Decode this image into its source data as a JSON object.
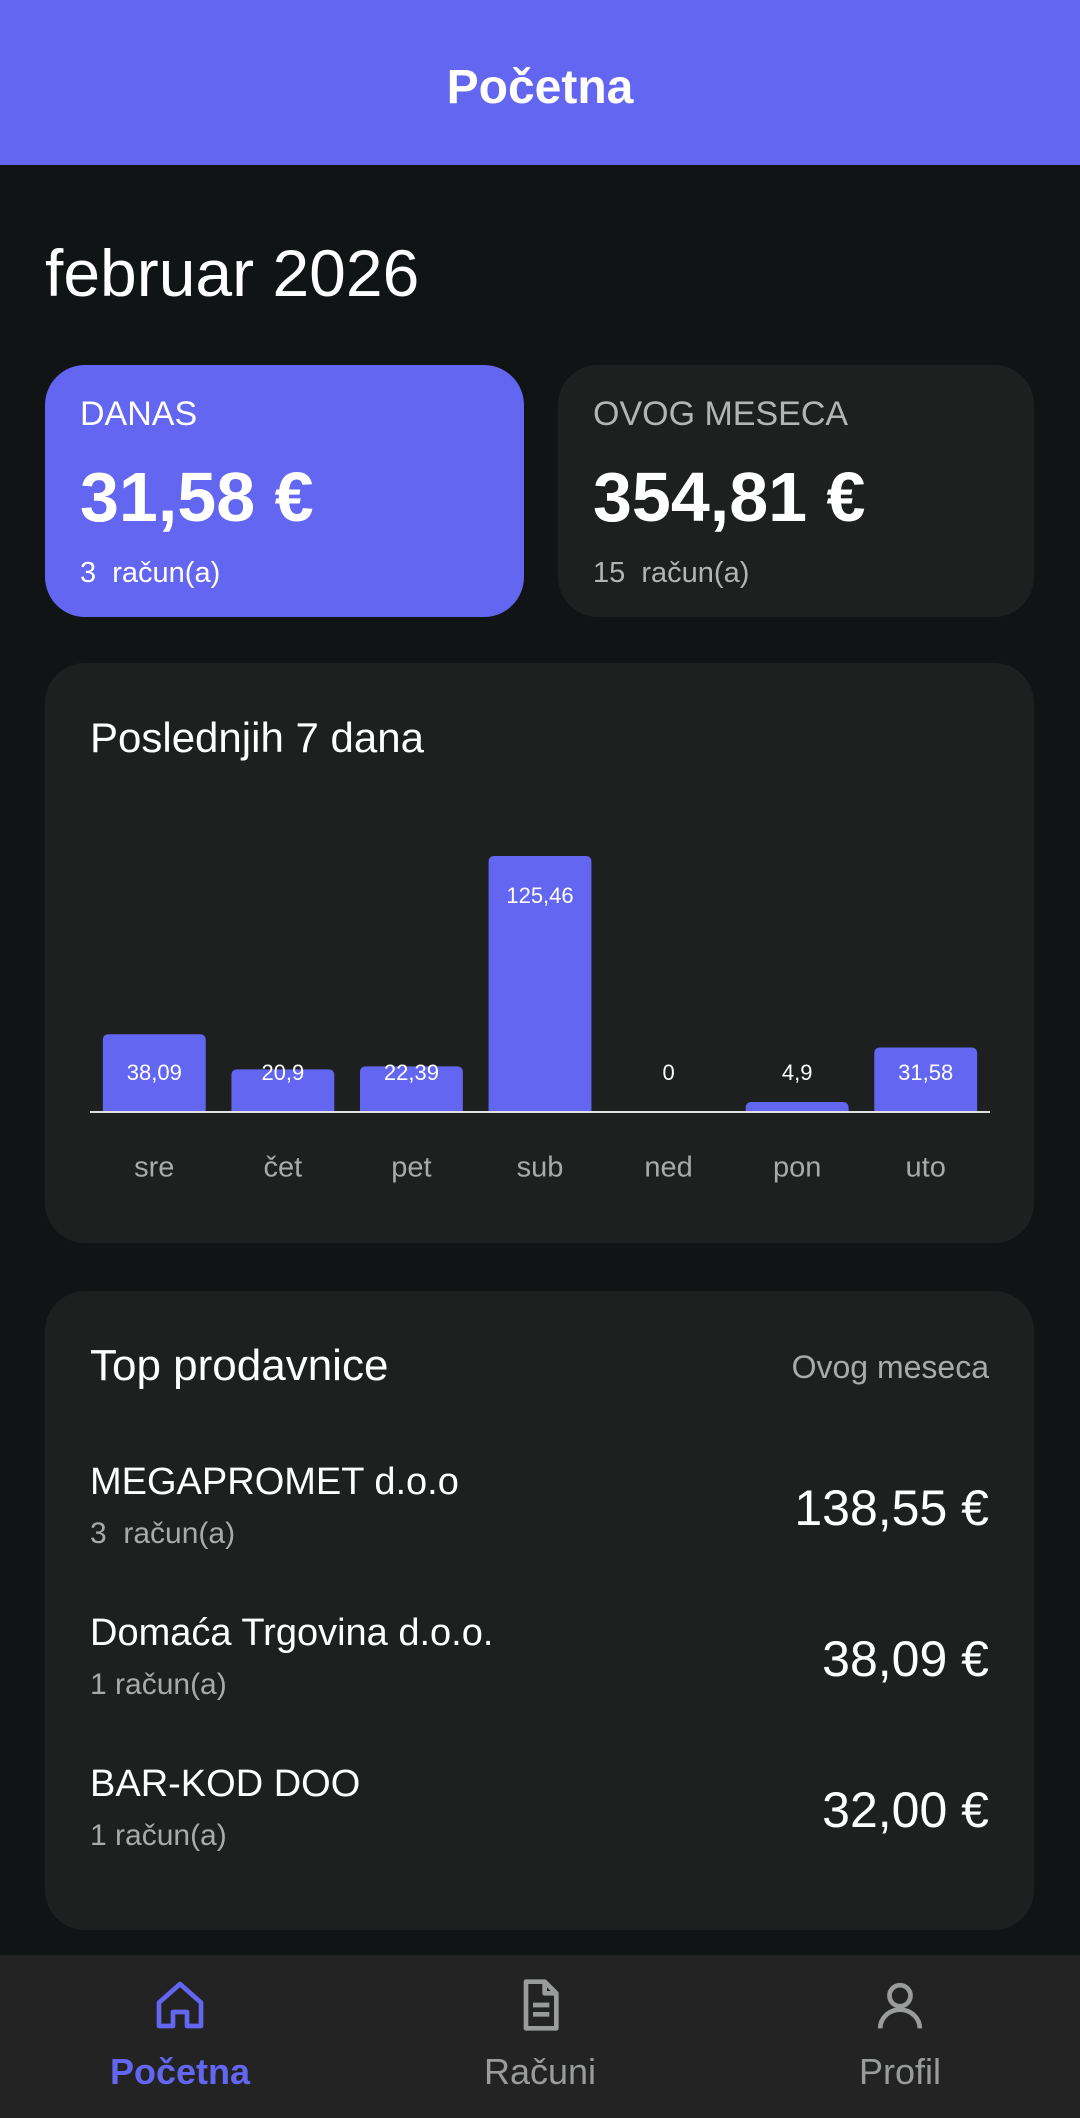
{
  "header": {
    "title": "Početna"
  },
  "month": "februar 2026",
  "cards": [
    {
      "label": "DANAS",
      "amount": "31,58 €",
      "count": "3  račun(a)"
    },
    {
      "label": "OVOG MESECA",
      "amount": "354,81 €",
      "count": "15  račun(a)"
    }
  ],
  "chart_data": {
    "type": "bar",
    "title": "Poslednjih 7 dana",
    "categories": [
      "sre",
      "čet",
      "pet",
      "sub",
      "ned",
      "pon",
      "uto"
    ],
    "values": [
      38.09,
      20.9,
      22.39,
      125.46,
      0,
      4.9,
      31.58
    ],
    "value_labels": [
      "38,09",
      "20,9",
      "22,39",
      "125,46",
      "0",
      "4,9",
      "31,58"
    ],
    "color": "#6366f1"
  },
  "top": {
    "title": "Top prodavnice",
    "period": "Ovog meseca",
    "stores": [
      {
        "name": "MEGAPROMET d.o.o",
        "count": "3  račun(a)",
        "amount": "138,55 €"
      },
      {
        "name": "Domaća Trgovina d.o.o.",
        "count": "1 račun(a)",
        "amount": "38,09 €"
      },
      {
        "name": "BAR-KOD DOO",
        "count": "1 račun(a)",
        "amount": "32,00 €"
      }
    ]
  },
  "nav": [
    "Početna",
    "Računi",
    "Profil"
  ]
}
